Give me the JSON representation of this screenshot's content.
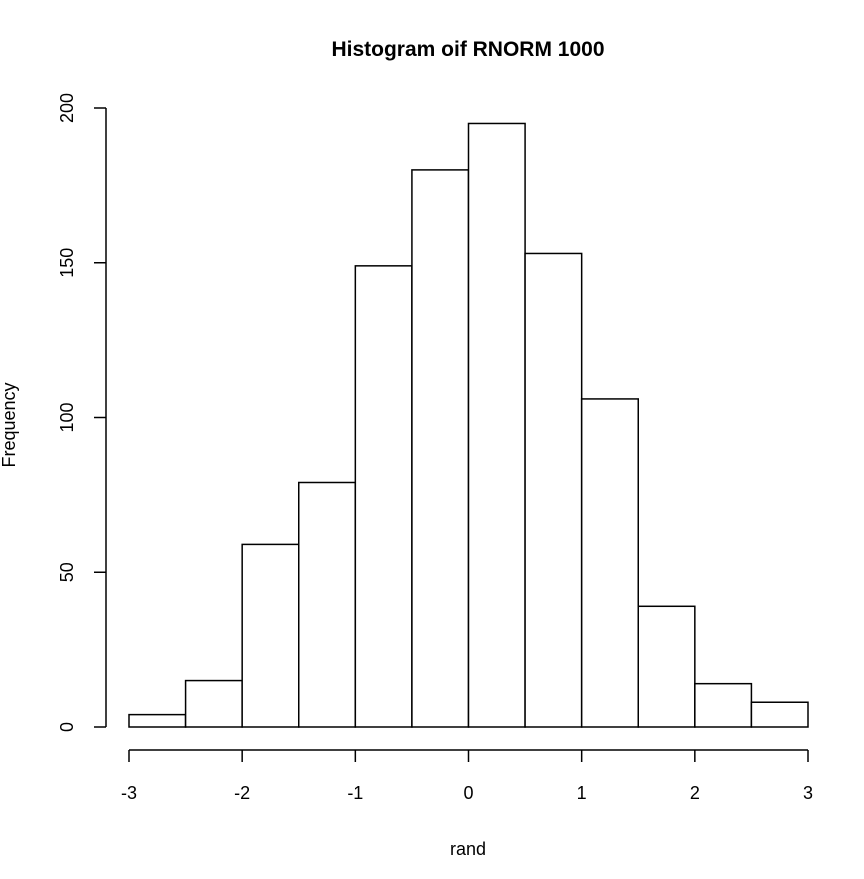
{
  "chart_data": {
    "type": "bar",
    "title": "Histogram oif RNORM  1000",
    "xlabel": "rand",
    "ylabel": "Frequency",
    "bins": [
      {
        "start": -3.0,
        "end": -2.5,
        "count": 4
      },
      {
        "start": -2.5,
        "end": -2.0,
        "count": 15
      },
      {
        "start": -2.0,
        "end": -1.5,
        "count": 59
      },
      {
        "start": -1.5,
        "end": -1.0,
        "count": 79
      },
      {
        "start": -1.0,
        "end": -0.5,
        "count": 149
      },
      {
        "start": -0.5,
        "end": 0.0,
        "count": 180
      },
      {
        "start": 0.0,
        "end": 0.5,
        "count": 195
      },
      {
        "start": 0.5,
        "end": 1.0,
        "count": 153
      },
      {
        "start": 1.0,
        "end": 1.5,
        "count": 106
      },
      {
        "start": 1.5,
        "end": 2.0,
        "count": 39
      },
      {
        "start": 2.0,
        "end": 2.5,
        "count": 14
      },
      {
        "start": 2.5,
        "end": 3.0,
        "count": 8
      }
    ],
    "xlim": [
      -3,
      3
    ],
    "ylim": [
      0,
      200
    ],
    "xticks": [
      -3,
      -2,
      -1,
      0,
      1,
      2,
      3
    ],
    "yticks": [
      0,
      50,
      100,
      150,
      200
    ],
    "grid": false,
    "legend": "none",
    "bar_fill": "#ffffff",
    "bar_stroke": "#000000"
  }
}
